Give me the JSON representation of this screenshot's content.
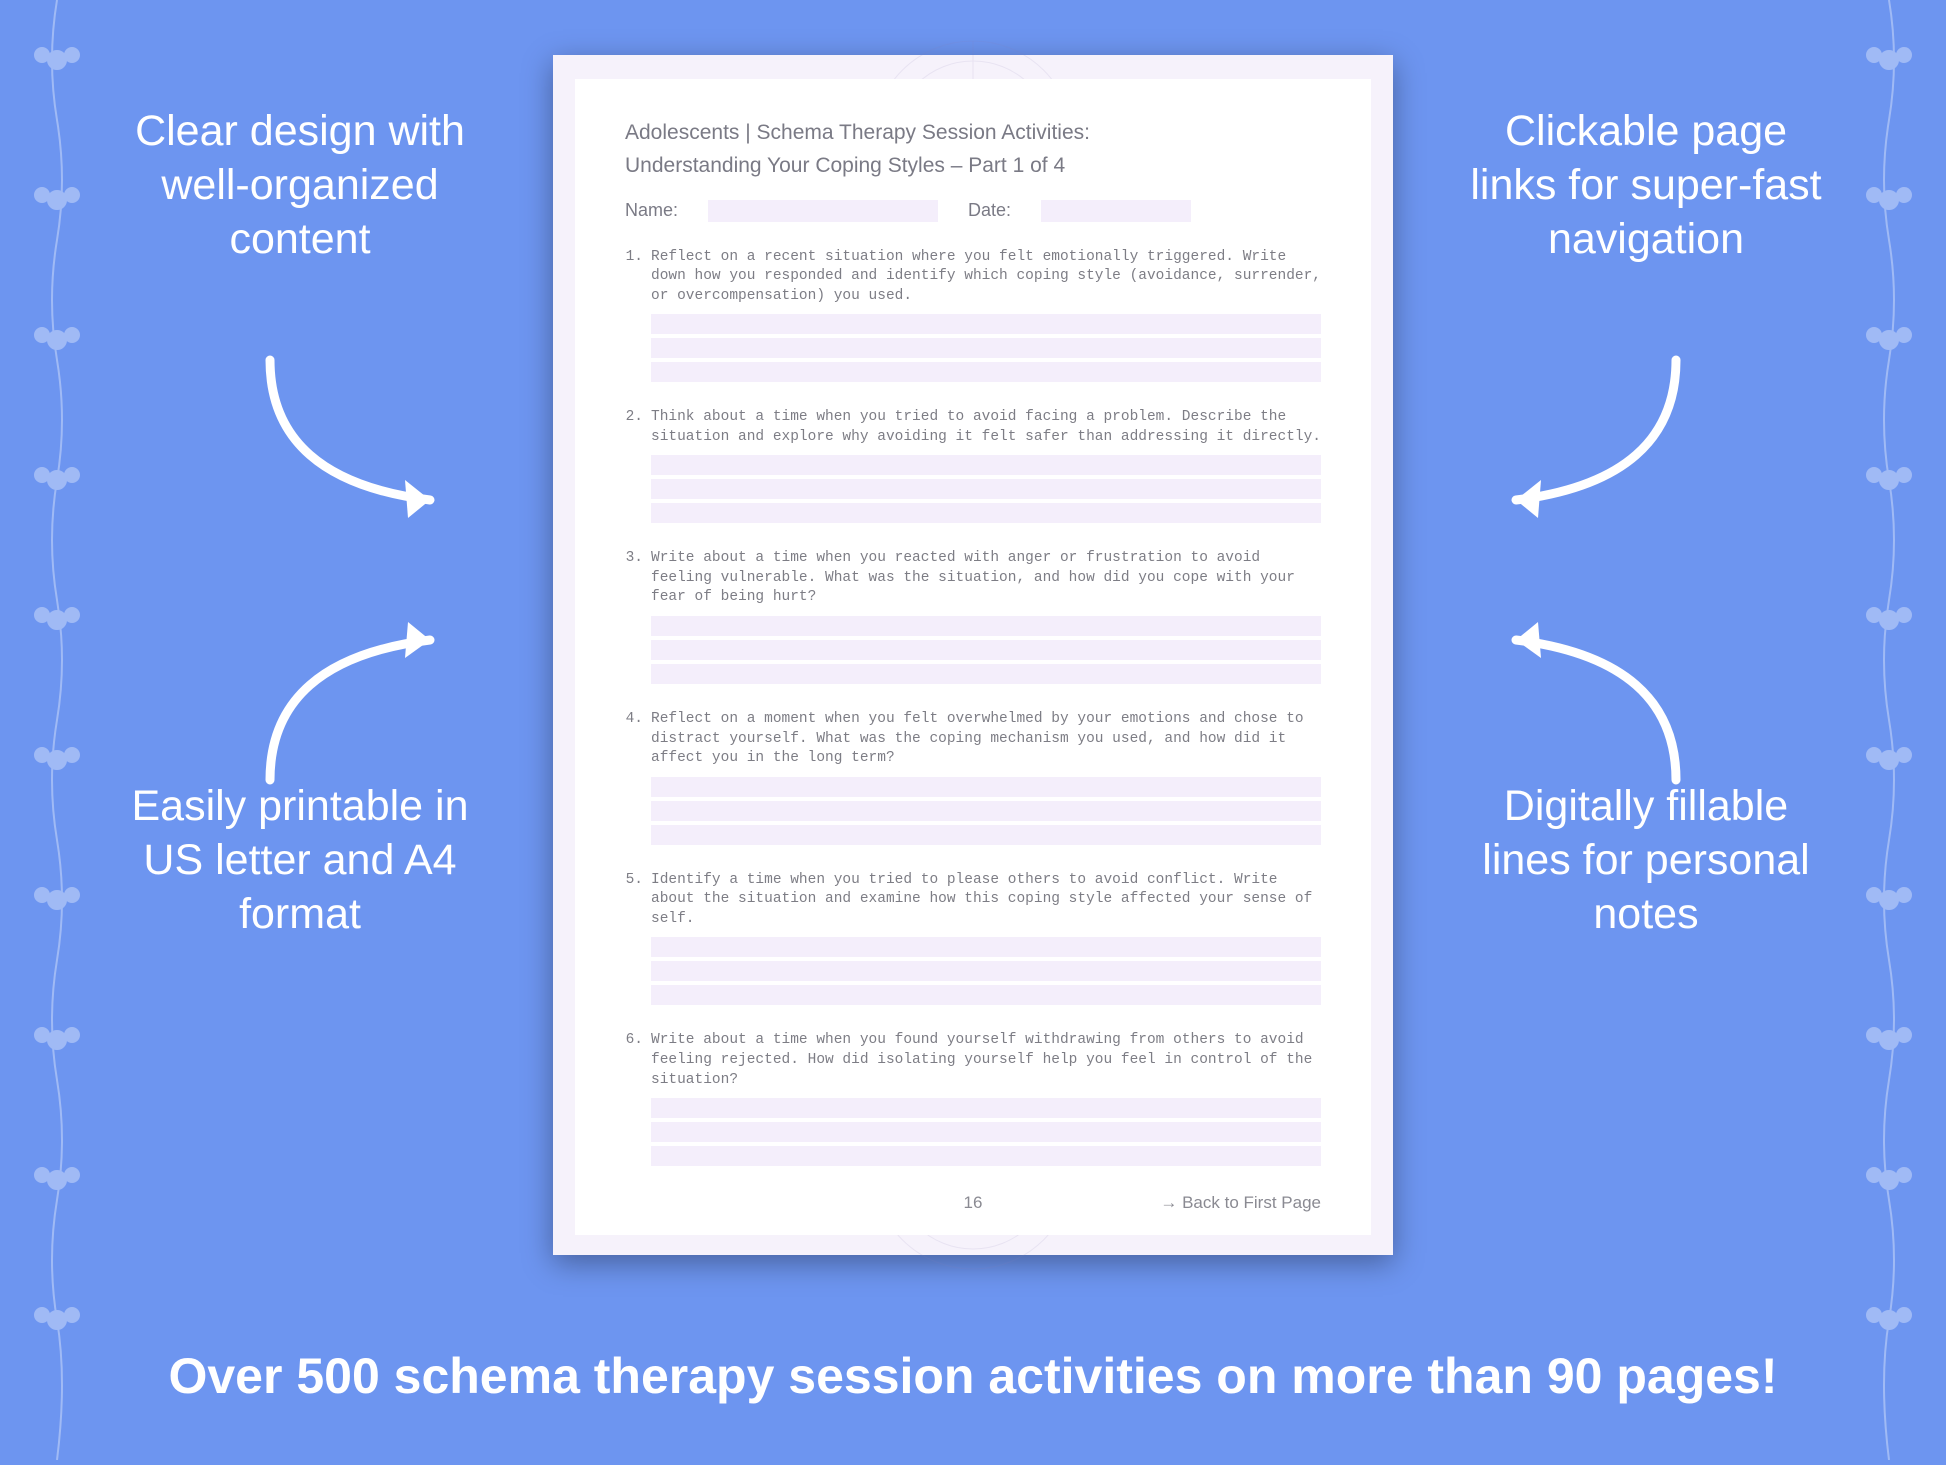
{
  "background_color": "#6d95f0",
  "text_color": "#ffffff",
  "worksheet_bg": "#f6f2fb",
  "worksheet_inner_bg": "#ffffff",
  "field_fill": "#f4eefb",
  "doc_text_color": "#7a7a85",
  "q_text_color": "#7d7d85",
  "callouts": {
    "top_left": "Clear design with well-organized content",
    "top_right": "Clickable page links for super-fast navigation",
    "bottom_left": "Easily printable in US letter and A4 format",
    "bottom_right": "Digitally fillable lines for personal notes"
  },
  "banner": "Over 500 schema therapy session activities on more than 90 pages!",
  "worksheet": {
    "header_line1": "Adolescents | Schema Therapy Session Activities:",
    "header_line2": "Understanding Your Coping Styles  – Part 1 of 4",
    "name_label": "Name:",
    "date_label": "Date:",
    "questions": [
      "Reflect on a recent situation where you felt emotionally triggered. Write down how you responded and identify which coping style (avoidance, surrender, or overcompensation) you used.",
      "Think about a time when you tried to avoid facing a problem. Describe the situation and explore why avoiding it felt safer than addressing it directly.",
      "Write about a time when you reacted with anger or frustration to avoid feeling vulnerable. What was the situation, and how did you cope with your fear of being hurt?",
      "Reflect on a moment when you felt overwhelmed by your emotions and chose to distract yourself. What was the coping mechanism you used, and how did it affect you in the long term?",
      "Identify a time when you tried to please others to avoid conflict. Write about the situation and examine how this coping style affected your sense of self.",
      "Write about a time when you found yourself withdrawing from others to avoid feeling rejected. How did isolating yourself help you feel in control of the situation?"
    ],
    "lines_per_question": 3,
    "page_number": "16",
    "back_link": "→ Back to First Page"
  },
  "typography": {
    "callout_fontsize": 43,
    "banner_fontsize": 50,
    "doc_head_fontsize": 21,
    "q_fontsize": 14.5,
    "q_font_family": "Courier New"
  }
}
